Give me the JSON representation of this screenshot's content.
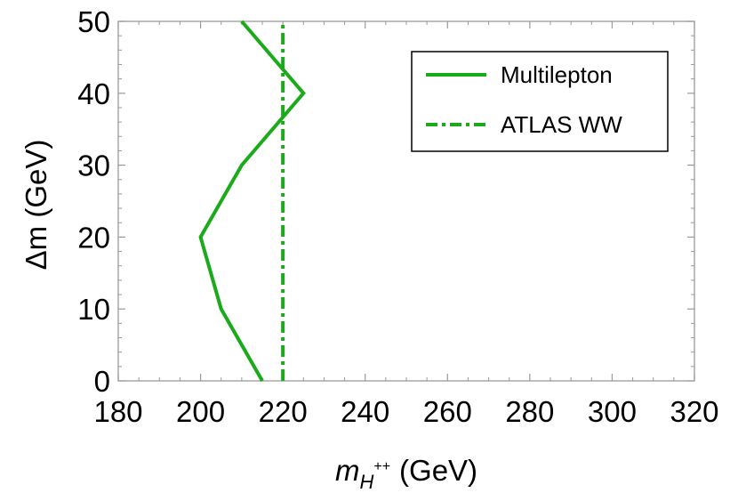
{
  "chart_data": {
    "type": "line",
    "xlabel_main": "m",
    "xlabel_sub": "H",
    "xlabel_sup": "++",
    "xlabel_unit": "(GeV)",
    "ylabel": "Δm (GeV)",
    "xlim": [
      180,
      320
    ],
    "ylim": [
      0,
      50
    ],
    "xticks": [
      180,
      200,
      220,
      240,
      260,
      280,
      300,
      320
    ],
    "yticks": [
      0,
      10,
      20,
      30,
      40,
      50
    ],
    "xminor_step": 5,
    "yminor_step": 2,
    "legend_position": "top-right",
    "series": [
      {
        "name": "Multilepton",
        "style": "solid",
        "color": "#1aaa1a",
        "points": [
          [
            215,
            0
          ],
          [
            205,
            10
          ],
          [
            200,
            20
          ],
          [
            210,
            30
          ],
          [
            225,
            40
          ],
          [
            210,
            50
          ]
        ]
      },
      {
        "name": "ATLAS WW",
        "style": "dashdot",
        "color": "#1aaa1a",
        "points": [
          [
            220,
            0
          ],
          [
            220,
            50
          ]
        ]
      }
    ]
  }
}
